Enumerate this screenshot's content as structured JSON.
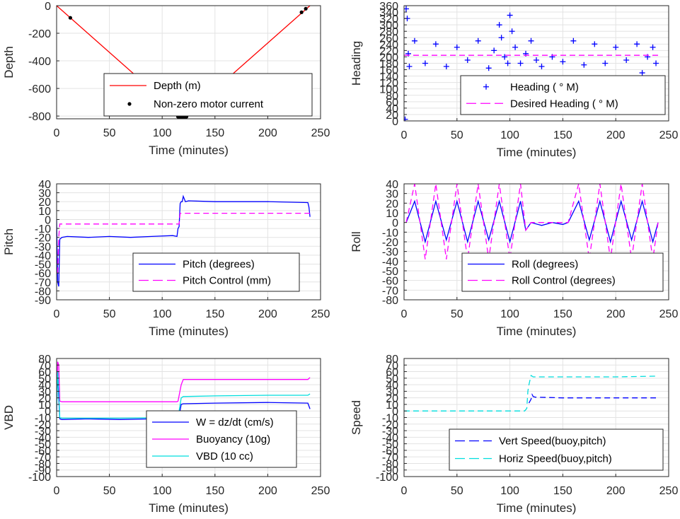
{
  "chart_data": [
    {
      "type": "line",
      "ylabel": "Depth",
      "xlabel": "Time (minutes)",
      "xlim": [
        0,
        250
      ],
      "ylim": [
        -820,
        0
      ],
      "xticks": [
        0,
        50,
        100,
        150,
        200,
        250
      ],
      "yticks": [
        0,
        -200,
        -400,
        -600,
        -800
      ],
      "grid": true,
      "legend_position": "bottom-right",
      "series": [
        {
          "name": "Depth (m)",
          "color": "#ff0000",
          "style": "solid",
          "x": [
            0,
            120,
            240
          ],
          "y": [
            0,
            -812,
            0
          ]
        },
        {
          "name": "Non-zero motor current",
          "color": "#000000",
          "style": "dots",
          "x": [
            13,
            115,
            117,
            118,
            119,
            120,
            121,
            122,
            123,
            232,
            236
          ],
          "y": [
            -88,
            -805,
            -810,
            -812,
            -812,
            -812,
            -812,
            -810,
            -805,
            -48,
            -22
          ]
        }
      ]
    },
    {
      "type": "scatter",
      "ylabel": "Heading",
      "xlabel": "Time (minutes)",
      "xlim": [
        0,
        250
      ],
      "ylim": [
        0,
        360
      ],
      "xticks": [
        0,
        50,
        100,
        150,
        200,
        250
      ],
      "yticks": [
        0,
        20,
        40,
        60,
        80,
        100,
        120,
        140,
        160,
        180,
        200,
        220,
        240,
        260,
        280,
        300,
        320,
        340,
        360
      ],
      "grid": true,
      "legend_position": "bottom-right",
      "series": [
        {
          "name": "Heading ( ° M)",
          "color": "#0000ff",
          "style": "plus",
          "x": [
            1,
            2,
            3,
            4,
            5,
            10,
            20,
            30,
            40,
            50,
            60,
            70,
            80,
            85,
            90,
            92,
            95,
            98,
            100,
            102,
            105,
            110,
            115,
            120,
            125,
            130,
            140,
            150,
            160,
            170,
            180,
            190,
            200,
            210,
            220,
            225,
            228,
            230,
            235,
            238
          ],
          "y": [
            5,
            350,
            320,
            210,
            170,
            250,
            180,
            240,
            170,
            230,
            190,
            250,
            165,
            220,
            300,
            260,
            200,
            180,
            330,
            280,
            230,
            180,
            210,
            250,
            190,
            170,
            200,
            185,
            250,
            175,
            240,
            180,
            230,
            190,
            240,
            150,
            130,
            200,
            230,
            180
          ]
        },
        {
          "name": "Desired Heading (     ° M)",
          "color": "#ff00ff",
          "style": "dashed",
          "x": [
            0,
            240
          ],
          "y": [
            205,
            205
          ]
        }
      ]
    },
    {
      "type": "line",
      "ylabel": "Pitch",
      "xlabel": "Time (minutes)",
      "xlim": [
        0,
        250
      ],
      "ylim": [
        -90,
        40
      ],
      "xticks": [
        0,
        50,
        100,
        150,
        200,
        250
      ],
      "yticks": [
        40,
        30,
        20,
        10,
        0,
        -10,
        -20,
        -30,
        -40,
        -50,
        -60,
        -70,
        -80,
        -90
      ],
      "grid": true,
      "legend_position": "bottom-right",
      "series": [
        {
          "name": "Pitch (degrees)",
          "color": "#0000ff",
          "style": "solid",
          "x": [
            0,
            1,
            2,
            3,
            5,
            10,
            30,
            50,
            70,
            90,
            110,
            114,
            115,
            116,
            117,
            118,
            119,
            120,
            122,
            125,
            150,
            200,
            238,
            239,
            240
          ],
          "y": [
            0,
            -70,
            -75,
            -22,
            -20,
            -19,
            -20,
            -19,
            -20,
            -19,
            -18,
            -19,
            -10,
            -8,
            18,
            20,
            20,
            26,
            20,
            21,
            20,
            20,
            19,
            14,
            3
          ]
        },
        {
          "name": "Pitch Control (mm)",
          "color": "#ff00ff",
          "style": "dashed",
          "x": [
            1,
            2,
            3,
            10,
            115,
            116,
            117,
            120,
            240
          ],
          "y": [
            -60,
            -20,
            -5,
            -5,
            -5,
            -5,
            7,
            7,
            7
          ]
        }
      ]
    },
    {
      "type": "line",
      "ylabel": "Roll",
      "xlabel": "Time (minutes)",
      "xlim": [
        0,
        250
      ],
      "ylim": [
        -80,
        40
      ],
      "xticks": [
        0,
        50,
        100,
        150,
        200,
        250
      ],
      "yticks": [
        40,
        30,
        20,
        10,
        0,
        -10,
        -20,
        -30,
        -40,
        -50,
        -60,
        -70,
        -80
      ],
      "grid": true,
      "legend_position": "bottom-right",
      "series": [
        {
          "name": "Roll (degrees)",
          "color": "#0000ff",
          "style": "solid",
          "x": [
            2,
            10,
            20,
            30,
            40,
            50,
            60,
            70,
            80,
            90,
            100,
            110,
            115,
            120,
            130,
            140,
            150,
            155,
            165,
            175,
            185,
            195,
            205,
            215,
            225,
            235,
            240
          ],
          "y": [
            0,
            22,
            -20,
            22,
            -18,
            22,
            -20,
            22,
            -18,
            22,
            -20,
            22,
            -8,
            0,
            -3,
            0,
            -2,
            0,
            22,
            -18,
            22,
            -20,
            22,
            -18,
            22,
            -20,
            0
          ]
        },
        {
          "name": "Roll Control (degrees)",
          "color": "#ff00ff",
          "style": "dashed",
          "x": [
            2,
            10,
            20,
            30,
            40,
            50,
            60,
            70,
            80,
            90,
            100,
            110,
            115,
            120,
            130,
            140,
            150,
            155,
            165,
            175,
            185,
            195,
            205,
            215,
            225,
            235,
            240
          ],
          "y": [
            0,
            40,
            -38,
            40,
            -38,
            40,
            -38,
            40,
            -38,
            40,
            -38,
            40,
            -8,
            0,
            0,
            0,
            0,
            0,
            40,
            -38,
            40,
            -38,
            40,
            -38,
            40,
            -38,
            0
          ]
        }
      ]
    },
    {
      "type": "line",
      "ylabel": "VBD",
      "xlabel": "Time (minutes)",
      "xlim": [
        0,
        250
      ],
      "ylim": [
        -100,
        80
      ],
      "xticks": [
        0,
        50,
        100,
        150,
        200,
        250
      ],
      "yticks": [
        80,
        70,
        60,
        50,
        40,
        30,
        20,
        10,
        0,
        -10,
        -20,
        -30,
        -40,
        -50,
        -60,
        -70,
        -80,
        -90,
        -100
      ],
      "grid": true,
      "legend_position": "bottom-right",
      "series": [
        {
          "name": "W = dz/dt (cm/s)",
          "color": "#0000ff",
          "style": "solid",
          "x": [
            0,
            1,
            2,
            3,
            5,
            30,
            60,
            90,
            114,
            116,
            118,
            120,
            150,
            200,
            238,
            240
          ],
          "y": [
            0,
            60,
            20,
            -12,
            -13,
            -12,
            -13,
            -12,
            -12,
            -8,
            10,
            11,
            12,
            13,
            12,
            3
          ]
        },
        {
          "name": "Buoyancy (10g)",
          "color": "#ff00ff",
          "style": "solid",
          "x": [
            0,
            1,
            2,
            3,
            5,
            60,
            114,
            115,
            118,
            120,
            150,
            200,
            238,
            240
          ],
          "y": [
            0,
            75,
            70,
            15,
            14,
            14,
            14,
            15,
            40,
            48,
            48,
            48,
            48,
            51
          ]
        },
        {
          "name": "VBD (10 cc)",
          "color": "#00dddd",
          "style": "solid",
          "x": [
            0,
            1,
            2,
            3,
            5,
            60,
            114,
            115,
            118,
            120,
            150,
            200,
            238,
            240
          ],
          "y": [
            0,
            60,
            30,
            -10,
            -11,
            -11,
            -10,
            -10,
            20,
            22,
            23,
            24,
            24,
            26
          ]
        }
      ]
    },
    {
      "type": "line",
      "ylabel": "Speed",
      "xlabel": "Time (minutes)",
      "xlim": [
        0,
        250
      ],
      "ylim": [
        -100,
        80
      ],
      "xticks": [
        0,
        50,
        100,
        150,
        200,
        250
      ],
      "yticks": [
        80,
        70,
        60,
        50,
        40,
        30,
        20,
        10,
        0,
        -10,
        -20,
        -30,
        -40,
        -50,
        -60,
        -70,
        -80,
        -90,
        -100
      ],
      "grid": true,
      "legend_position": "bottom-right",
      "series": [
        {
          "name": "Vert Speed(buoy,pitch)",
          "color": "#0000ff",
          "style": "dashed",
          "x": [
            118,
            120,
            121,
            122,
            124,
            150,
            200,
            238
          ],
          "y": [
            12,
            18,
            25,
            22,
            21,
            20,
            20,
            20
          ]
        },
        {
          "name": "Horiz Speed(buoy,pitch)",
          "color": "#00dddd",
          "style": "dashed",
          "x": [
            0,
            60,
            114,
            116,
            117,
            118,
            120,
            122,
            150,
            200,
            238
          ],
          "y": [
            0,
            0,
            0,
            4,
            30,
            40,
            54,
            52,
            52,
            52,
            53
          ]
        }
      ]
    }
  ]
}
